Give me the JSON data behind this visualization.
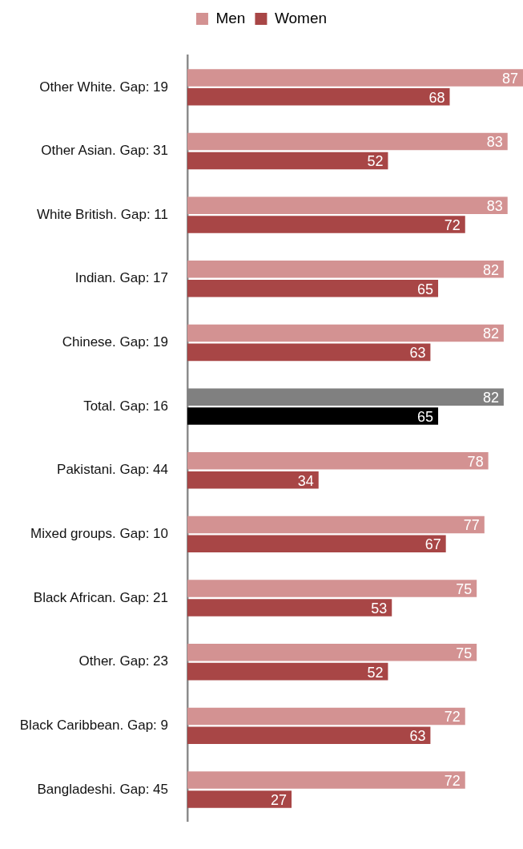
{
  "chart_data": {
    "type": "bar",
    "orientation": "horizontal",
    "categories": [
      "Other White. Gap: 19",
      "Other Asian. Gap: 31",
      "White British. Gap: 11",
      "Indian. Gap: 17",
      "Chinese. Gap: 19",
      "Total. Gap: 16",
      "Pakistani. Gap: 44",
      "Mixed groups. Gap: 10",
      "Black African. Gap: 21",
      "Other. Gap: 23",
      "Black Caribbean. Gap: 9",
      "Bangladeshi. Gap: 45"
    ],
    "series": [
      {
        "name": "Men",
        "color": "#d39292",
        "colors": [
          "#d39292",
          "#d39292",
          "#d39292",
          "#d39292",
          "#d39292",
          "#808080",
          "#d39292",
          "#d39292",
          "#d39292",
          "#d39292",
          "#d39292",
          "#d39292"
        ],
        "values": [
          87,
          83,
          83,
          82,
          82,
          82,
          78,
          77,
          75,
          75,
          72,
          72
        ]
      },
      {
        "name": "Women",
        "color": "#a84646",
        "colors": [
          "#a84646",
          "#a84646",
          "#a84646",
          "#a84646",
          "#a84646",
          "#000000",
          "#a84646",
          "#a84646",
          "#a84646",
          "#a84646",
          "#a84646",
          "#a84646"
        ],
        "values": [
          68,
          52,
          72,
          65,
          63,
          65,
          34,
          67,
          53,
          52,
          63,
          27
        ]
      }
    ],
    "tick_labels": "y",
    "data_labels": true,
    "legend": "top"
  }
}
